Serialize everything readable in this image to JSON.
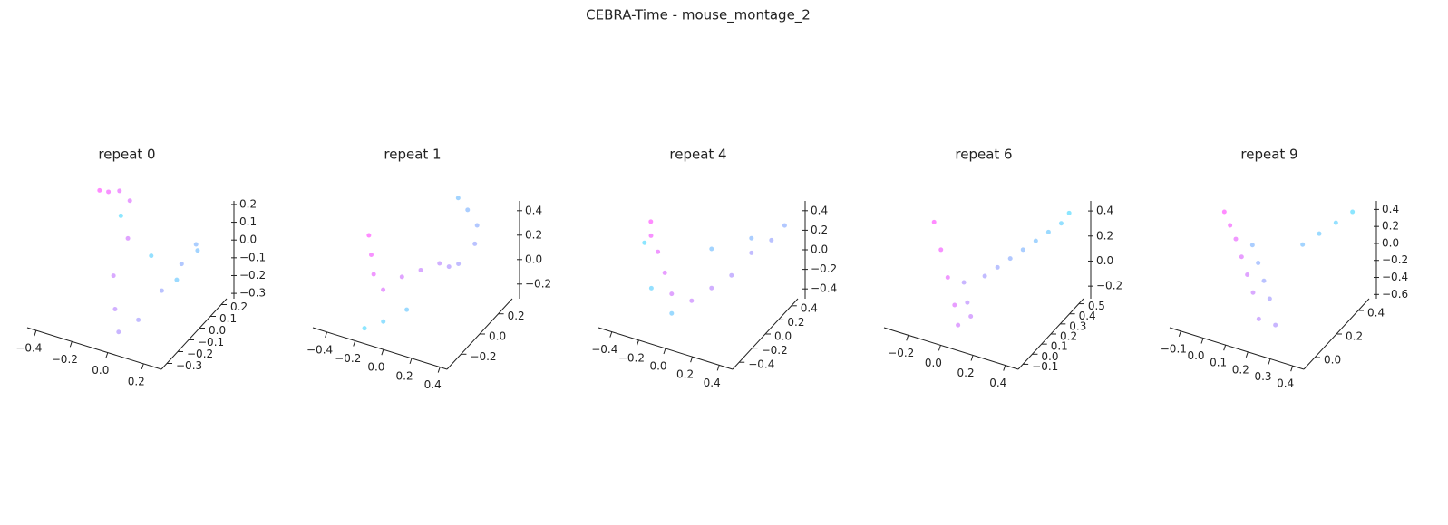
{
  "chart_data": [
    {
      "type": "scatter3d",
      "title": "repeat 0",
      "colors": [
        "#ff00ff",
        "#00c8ff"
      ],
      "x": [
        -0.38,
        -0.3,
        -0.22,
        -0.15,
        -0.1,
        -0.12,
        -0.05,
        0.0,
        0.08,
        0.15,
        0.2,
        0.22,
        0.18,
        0.1,
        0.0,
        -0.2
      ],
      "y": [
        0.2,
        0.15,
        0.12,
        0.1,
        0.0,
        -0.1,
        -0.2,
        -0.25,
        -0.2,
        -0.1,
        0.0,
        0.1,
        0.18,
        0.12,
        0.05,
        0.1
      ],
      "z": [
        0.1,
        0.15,
        0.2,
        0.18,
        0.05,
        -0.1,
        -0.2,
        -0.28,
        -0.22,
        -0.1,
        0.0,
        0.05,
        -0.05,
        -0.2,
        -0.05,
        0.08
      ],
      "xlim": [
        -0.45,
        0.3
      ],
      "ylim": [
        -0.35,
        0.25
      ],
      "zlim": [
        -0.33,
        0.22
      ],
      "xticks": [
        {
          "value": -0.4,
          "label": "−0.4"
        },
        {
          "value": -0.2,
          "label": "−0.2"
        },
        {
          "value": 0,
          "label": "0.0"
        },
        0.2
      ],
      "yticks": [
        {
          "value": -0.3,
          "label": "−0.3"
        },
        {
          "value": -0.2,
          "label": "−0.2"
        },
        {
          "value": -0.1,
          "label": "−0.1"
        },
        {
          "value": 0,
          "label": "0.0"
        },
        0.1,
        0.2
      ],
      "zticks": [
        {
          "value": -0.3,
          "label": "−0.3"
        },
        {
          "value": -0.2,
          "label": "−0.2"
        },
        {
          "value": -0.1,
          "label": "−0.1"
        },
        {
          "value": 0,
          "label": "0.0"
        },
        0.1,
        0.2
      ]
    },
    {
      "type": "scatter3d",
      "title": "repeat 1",
      "colors": [
        "#ff00ff",
        "#00c8ff"
      ],
      "x": [
        -0.4,
        -0.35,
        -0.3,
        -0.2,
        -0.1,
        0.0,
        0.1,
        0.2,
        0.3,
        0.35,
        0.3,
        0.2,
        0.1,
        0.0,
        -0.1,
        -0.2
      ],
      "y": [
        0.1,
        0.05,
        0.0,
        -0.05,
        0.0,
        0.05,
        0.1,
        0.05,
        0.0,
        0.1,
        0.2,
        0.25,
        0.3,
        -0.1,
        -0.2,
        -0.25
      ],
      "z": [
        0.1,
        0.0,
        -0.1,
        -0.15,
        -0.05,
        0.0,
        0.05,
        0.1,
        0.2,
        0.3,
        0.35,
        0.4,
        0.42,
        -0.2,
        -0.25,
        -0.3
      ],
      "xlim": [
        -0.5,
        0.45
      ],
      "ylim": [
        -0.35,
        0.35
      ],
      "zlim": [
        -0.32,
        0.48
      ],
      "xticks": [
        {
          "value": -0.4,
          "label": "−0.4"
        },
        {
          "value": -0.2,
          "label": "−0.2"
        },
        {
          "value": 0,
          "label": "0.0"
        },
        0.2,
        0.4
      ],
      "yticks": [
        {
          "value": -0.2,
          "label": "−0.2"
        },
        {
          "value": 0,
          "label": "0.0"
        },
        0.2
      ],
      "zticks": [
        {
          "value": -0.2,
          "label": "−0.2"
        },
        {
          "value": 0,
          "label": "0.0"
        },
        0.2,
        0.4
      ]
    },
    {
      "type": "scatter3d",
      "title": "repeat 4",
      "colors": [
        "#ff00ff",
        "#00c8ff"
      ],
      "x": [
        -0.45,
        -0.4,
        -0.3,
        -0.2,
        -0.1,
        0.0,
        0.1,
        0.2,
        0.3,
        0.4,
        0.45,
        0.3,
        0.1,
        -0.1,
        -0.3,
        -0.4
      ],
      "y": [
        0.2,
        0.1,
        0.0,
        -0.1,
        -0.2,
        -0.1,
        0.0,
        0.1,
        0.2,
        0.3,
        0.4,
        0.2,
        0.0,
        -0.2,
        -0.1,
        0.0
      ],
      "z": [
        0.1,
        0.05,
        0.0,
        -0.1,
        -0.2,
        -0.3,
        -0.2,
        -0.1,
        0.1,
        0.2,
        0.3,
        0.25,
        0.2,
        -0.4,
        -0.3,
        0.05
      ],
      "xlim": [
        -0.5,
        0.5
      ],
      "ylim": [
        -0.5,
        0.5
      ],
      "zlim": [
        -0.5,
        0.5
      ],
      "xticks": [
        {
          "value": -0.4,
          "label": "−0.4"
        },
        {
          "value": -0.2,
          "label": "−0.2"
        },
        {
          "value": 0,
          "label": "0.0"
        },
        0.2,
        0.4
      ],
      "yticks": [
        {
          "value": -0.4,
          "label": "−0.4"
        },
        {
          "value": -0.2,
          "label": "−0.2"
        },
        {
          "value": 0,
          "label": "0.0"
        },
        0.2,
        0.4
      ],
      "zticks": [
        {
          "value": -0.4,
          "label": "−0.4"
        },
        {
          "value": -0.2,
          "label": "−0.2"
        },
        {
          "value": 0,
          "label": "0.0"
        },
        0.2,
        0.4
      ]
    },
    {
      "type": "scatter3d",
      "title": "repeat 6",
      "colors": [
        "#ff00ff",
        "#00c8ff"
      ],
      "x": [
        -0.3,
        -0.2,
        -0.1,
        0.0,
        0.05,
        0.1,
        0.05,
        0.0,
        0.1,
        0.15,
        0.2,
        0.25,
        0.3,
        0.35,
        0.4,
        0.42
      ],
      "y": [
        0.3,
        0.2,
        0.1,
        0.0,
        -0.05,
        0.0,
        0.05,
        0.1,
        0.15,
        0.2,
        0.25,
        0.3,
        0.35,
        0.4,
        0.45,
        0.5
      ],
      "z": [
        0.2,
        0.1,
        0.0,
        -0.1,
        -0.2,
        -0.15,
        -0.1,
        0.0,
        0.05,
        0.1,
        0.15,
        0.2,
        0.25,
        0.3,
        0.35,
        0.4
      ],
      "xlim": [
        -0.35,
        0.48
      ],
      "ylim": [
        -0.15,
        0.55
      ],
      "zlim": [
        -0.3,
        0.48
      ],
      "xticks": [
        {
          "value": -0.2,
          "label": "−0.2"
        },
        {
          "value": 0,
          "label": "0.0"
        },
        0.2,
        0.4
      ],
      "yticks": [
        {
          "value": -0.1,
          "label": "−0.1"
        },
        {
          "value": 0,
          "label": "0.0"
        },
        0.1,
        0.2,
        0.3,
        0.4,
        0.5
      ],
      "zticks": [
        {
          "value": -0.2,
          "label": "−0.2"
        },
        {
          "value": 0,
          "label": "0.0"
        },
        0.2,
        0.4
      ]
    },
    {
      "type": "scatter3d",
      "title": "repeat 9",
      "colors": [
        "#ff00ff",
        "#00c8ff"
      ],
      "x": [
        -0.1,
        -0.05,
        0.0,
        0.05,
        0.1,
        0.15,
        0.2,
        0.25,
        0.2,
        0.15,
        0.1,
        0.05,
        0.25,
        0.3,
        0.35,
        0.4
      ],
      "y": [
        0.3,
        0.25,
        0.2,
        0.15,
        0.1,
        0.05,
        0.0,
        0.05,
        0.1,
        0.15,
        0.2,
        0.25,
        0.3,
        0.35,
        0.4,
        0.45
      ],
      "z": [
        0.2,
        0.15,
        0.1,
        0.0,
        -0.1,
        -0.2,
        -0.4,
        -0.5,
        -0.3,
        -0.2,
        -0.1,
        0.0,
        0.1,
        0.2,
        0.3,
        0.4
      ],
      "xlim": [
        -0.15,
        0.45
      ],
      "ylim": [
        -0.1,
        0.5
      ],
      "zlim": [
        -0.65,
        0.5
      ],
      "xticks": [
        {
          "value": -0.1,
          "label": "−0.1"
        },
        {
          "value": 0,
          "label": "0.0"
        },
        0.1,
        0.2,
        0.3,
        0.4
      ],
      "yticks": [
        {
          "value": 0,
          "label": "0.0"
        },
        0.2,
        0.4
      ],
      "zticks": [
        {
          "value": -0.6,
          "label": "−0.6"
        },
        {
          "value": -0.4,
          "label": "−0.4"
        },
        {
          "value": -0.2,
          "label": "−0.2"
        },
        {
          "value": 0,
          "label": "0.0"
        },
        0.2,
        0.4
      ]
    }
  ],
  "title": "CEBRA-Time - mouse_montage_2"
}
